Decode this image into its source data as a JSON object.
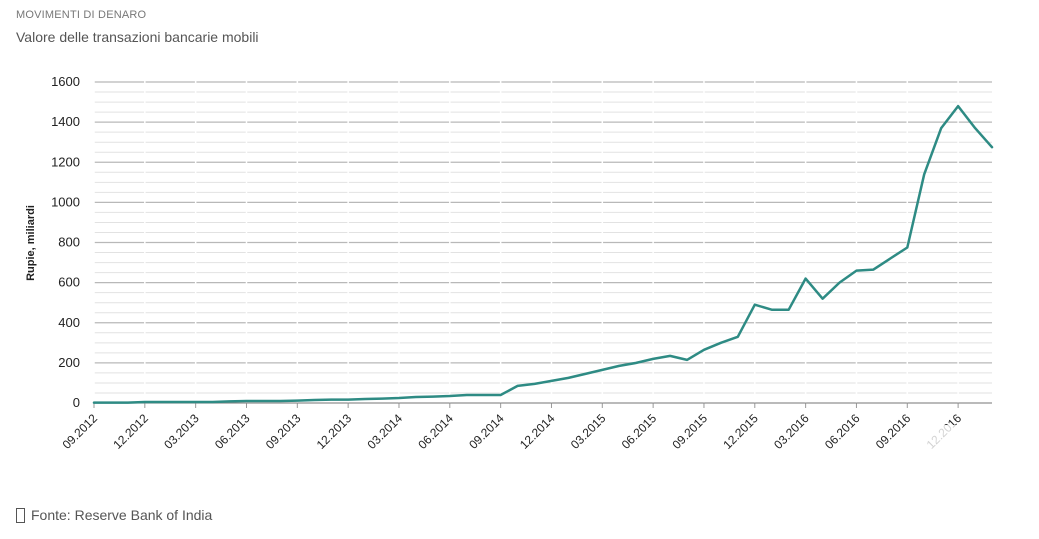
{
  "header": {
    "kicker": "MOVIMENTI DI DENARO",
    "title": "Valore delle  transazioni bancarie mobili"
  },
  "footer": {
    "source": "Fonte:  Reserve  Bank  of India"
  },
  "colors": {
    "line": "#2e8b84",
    "grid_major": "#b8b8b8",
    "grid_minor": "#e2e2e2"
  },
  "chart_data": {
    "type": "line",
    "title": "",
    "xlabel": "",
    "ylabel": "Rupie, miliardi",
    "ylim": [
      0,
      1600
    ],
    "yticks": [
      0,
      200,
      400,
      600,
      800,
      1000,
      1200,
      1400,
      1600
    ],
    "xtick_labels": [
      "09.2012",
      "12.2012",
      "03.2013",
      "06.2013",
      "09.2013",
      "12.2013",
      "03.2014",
      "06.2014",
      "09.2014",
      "12.2014",
      "03.2015",
      "06.2015",
      "09.2015",
      "12.2015",
      "03.2016",
      "06.2016",
      "09.2016",
      "12.2016"
    ],
    "x": [
      "09.2012",
      "10.2012",
      "11.2012",
      "12.2012",
      "01.2013",
      "02.2013",
      "03.2013",
      "04.2013",
      "05.2013",
      "06.2013",
      "07.2013",
      "08.2013",
      "09.2013",
      "10.2013",
      "11.2013",
      "12.2013",
      "01.2014",
      "02.2014",
      "03.2014",
      "04.2014",
      "05.2014",
      "06.2014",
      "07.2014",
      "08.2014",
      "09.2014",
      "10.2014",
      "11.2014",
      "12.2014",
      "01.2015",
      "02.2015",
      "03.2015",
      "04.2015",
      "05.2015",
      "06.2015",
      "07.2015",
      "08.2015",
      "09.2015",
      "10.2015",
      "11.2015",
      "12.2015",
      "01.2016",
      "02.2016",
      "03.2016",
      "04.2016",
      "05.2016",
      "06.2016",
      "07.2016",
      "08.2016",
      "09.2016",
      "10.2016",
      "11.2016",
      "12.2016",
      "01.2017",
      "02.2017"
    ],
    "series": [
      {
        "values": [
          2,
          2,
          2,
          5,
          5,
          5,
          5,
          5,
          8,
          10,
          10,
          10,
          12,
          15,
          17,
          17,
          20,
          22,
          25,
          30,
          32,
          35,
          40,
          40,
          40,
          85,
          95,
          110,
          125,
          145,
          165,
          185,
          200,
          220,
          235,
          215,
          265,
          300,
          330,
          490,
          465,
          465,
          620,
          520,
          600,
          660,
          665,
          720,
          775,
          1140,
          1370,
          1480,
          1370,
          1275
        ]
      }
    ],
    "grid": true,
    "legend": "none"
  }
}
